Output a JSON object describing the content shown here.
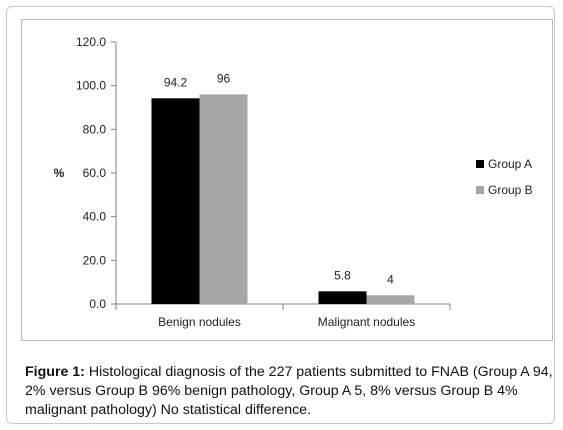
{
  "chart_data": {
    "type": "bar",
    "categories": [
      "Benign nodules",
      "Malignant nodules"
    ],
    "series": [
      {
        "name": "Group A",
        "values": [
          94.2,
          5.8
        ],
        "labels": [
          "94.2",
          "5.8"
        ],
        "color": "#000000"
      },
      {
        "name": "Group B",
        "values": [
          96,
          4
        ],
        "labels": [
          "96",
          "4"
        ],
        "color": "#a6a6a6"
      }
    ],
    "ylabel": "%",
    "ylim": [
      0,
      120
    ],
    "yticks": [
      "0.0",
      "20.0",
      "40.0",
      "60.0",
      "80.0",
      "100.0",
      "120.0"
    ],
    "ytick_values": [
      0,
      20,
      40,
      60,
      80,
      100,
      120
    ],
    "grid": false,
    "legend": "right"
  },
  "caption": {
    "label": "Figure 1:",
    "text": " Histological diagnosis of the 227 patients submitted to FNAB (Group A 94, 2% versus Group B 96% benign pathology, Group A 5, 8% versus Group B 4% malignant pathology) No statistical difference."
  }
}
